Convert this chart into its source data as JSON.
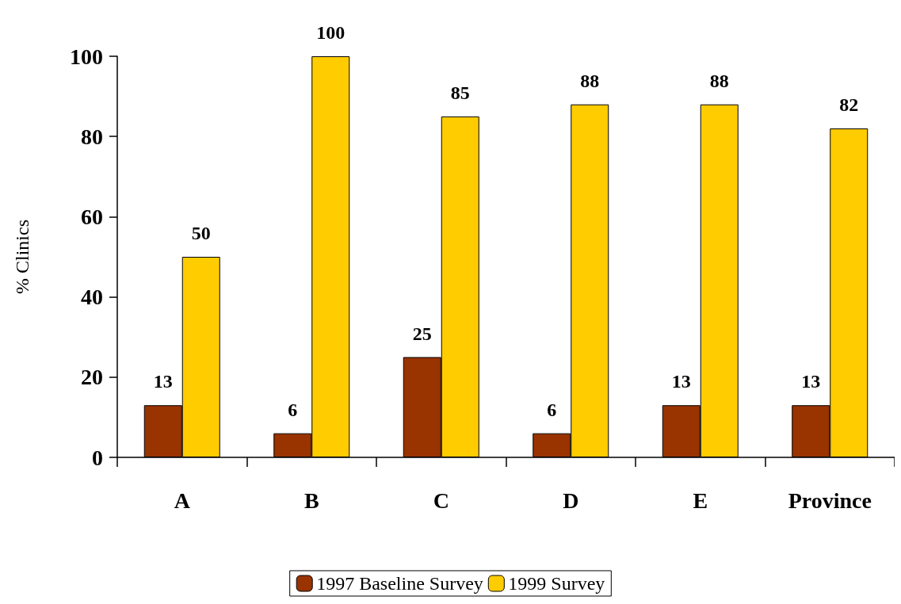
{
  "chart_data": {
    "type": "bar",
    "ylabel": "% Clinics",
    "categories": [
      "A",
      "B",
      "C",
      "D",
      "E",
      "Province"
    ],
    "series": [
      {
        "name": "1997 Baseline Survey",
        "color": "#993300",
        "values": [
          13,
          6,
          25,
          6,
          13,
          13
        ]
      },
      {
        "name": "1999 Survey",
        "color": "#ffcc00",
        "values": [
          50,
          100,
          85,
          88,
          88,
          82
        ]
      }
    ],
    "ylim": [
      0,
      100
    ],
    "yticks": [
      0,
      20,
      40,
      60,
      80,
      100
    ],
    "grid": false,
    "legend": "bottom",
    "data_labels": true
  }
}
